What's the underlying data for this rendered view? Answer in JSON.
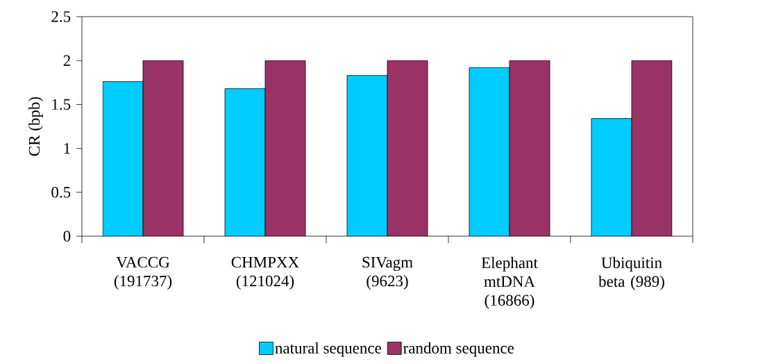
{
  "chart_data": {
    "type": "bar",
    "ylabel": "CR (bpb)",
    "categories": [
      "VACCG (191737)",
      "CHMPXX (121024)",
      "SIVagm (9623)",
      "Elephant mtDNA (16866)",
      "Ubiquitin beta (989)"
    ],
    "series": [
      {
        "name": "natural sequence",
        "color": "#00ccff",
        "values": [
          1.76,
          1.68,
          1.83,
          1.92,
          1.34
        ]
      },
      {
        "name": "random sequence",
        "color": "#993366",
        "values": [
          2,
          2,
          2,
          2,
          2
        ]
      }
    ],
    "ylim": [
      0,
      2.5
    ],
    "yticks": [
      0,
      0.5,
      1,
      1.5,
      2,
      2.5
    ],
    "grid": false,
    "legend": "bottom"
  }
}
